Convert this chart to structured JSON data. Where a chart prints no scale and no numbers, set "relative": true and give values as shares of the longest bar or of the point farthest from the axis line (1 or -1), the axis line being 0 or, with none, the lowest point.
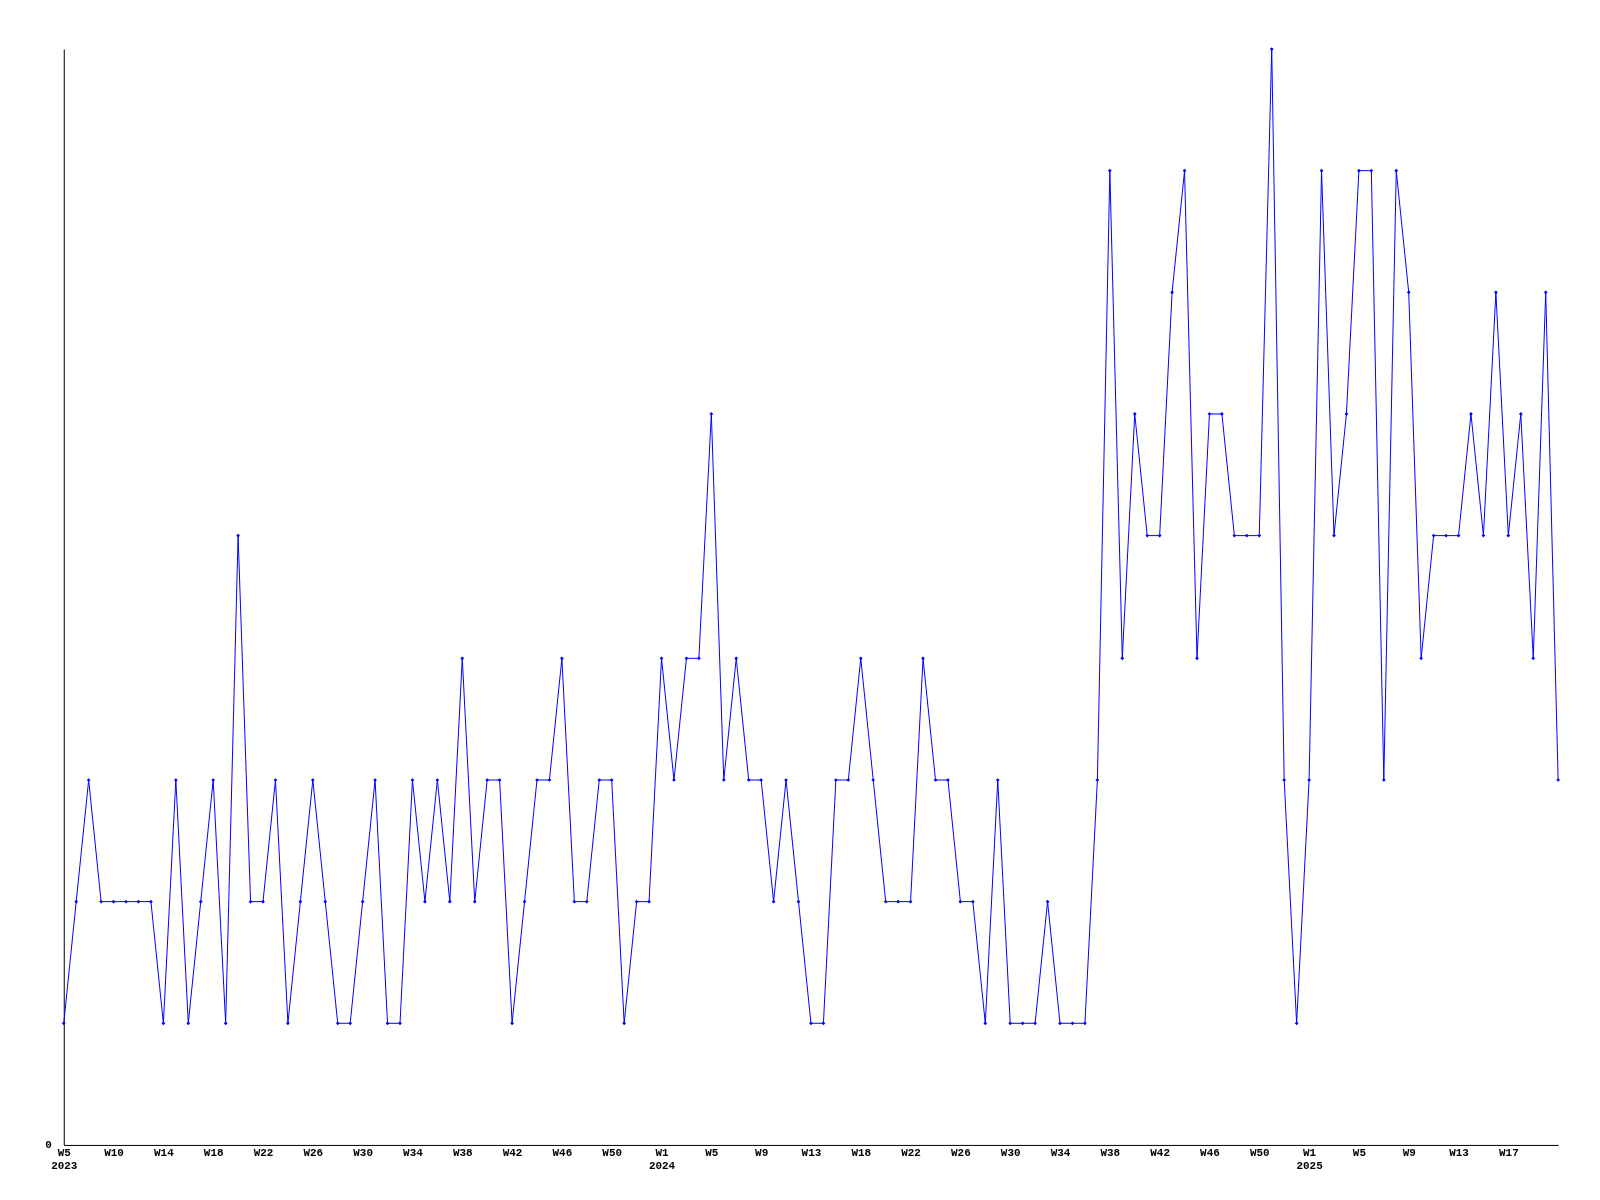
{
  "chart_data": {
    "type": "line",
    "relative": true,
    "color": "#0000ff",
    "marker": "diamond",
    "line_style": "solid",
    "grid": false,
    "annotations": [
      "0"
    ],
    "categories": [
      "W5\n2023",
      null,
      null,
      null,
      "W10",
      null,
      null,
      null,
      "W14",
      null,
      null,
      null,
      "W18",
      null,
      null,
      null,
      "W22",
      null,
      null,
      null,
      "W26",
      null,
      null,
      null,
      "W30",
      null,
      null,
      null,
      "W34",
      null,
      null,
      null,
      "W38",
      null,
      null,
      null,
      "W42",
      null,
      null,
      null,
      "W46",
      null,
      null,
      null,
      "W50",
      null,
      null,
      null,
      "W1\n2024",
      null,
      null,
      null,
      "W5",
      null,
      null,
      null,
      "W9",
      null,
      null,
      null,
      "W13",
      null,
      null,
      null,
      "W18",
      null,
      null,
      null,
      "W22",
      null,
      null,
      null,
      "W26",
      null,
      null,
      null,
      "W30",
      null,
      null,
      null,
      "W34",
      null,
      null,
      null,
      "W38",
      null,
      null,
      null,
      "W42",
      null,
      null,
      null,
      "W46",
      null,
      null,
      null,
      "W50",
      null,
      null,
      null,
      "W1\n2025",
      null,
      null,
      null,
      "W5",
      null,
      null,
      null,
      "W9",
      null,
      null,
      null,
      "W13",
      null,
      null,
      null,
      "W17",
      null,
      null,
      null,
      null
    ],
    "values": [
      0.111,
      0.222,
      0.333,
      0.222,
      0.222,
      0.222,
      0.222,
      0.222,
      0.111,
      0.333,
      0.111,
      0.222,
      0.333,
      0.111,
      0.556,
      0.222,
      0.222,
      0.333,
      0.111,
      0.222,
      0.333,
      0.222,
      0.111,
      0.111,
      0.222,
      0.333,
      0.111,
      0.111,
      0.333,
      0.222,
      0.333,
      0.222,
      0.444,
      0.222,
      0.333,
      0.333,
      0.111,
      0.222,
      0.333,
      0.333,
      0.444,
      0.222,
      0.222,
      0.333,
      0.333,
      0.111,
      0.222,
      0.222,
      0.444,
      0.333,
      0.444,
      0.444,
      0.667,
      0.333,
      0.444,
      0.333,
      0.333,
      0.222,
      0.333,
      0.222,
      0.111,
      0.111,
      0.333,
      0.333,
      0.444,
      0.333,
      0.222,
      0.222,
      0.222,
      0.444,
      0.333,
      0.333,
      0.222,
      0.222,
      0.111,
      0.333,
      0.111,
      0.111,
      0.111,
      0.222,
      0.111,
      0.111,
      0.111,
      0.333,
      0.889,
      0.444,
      0.667,
      0.556,
      0.556,
      0.778,
      0.889,
      0.444,
      0.667,
      0.667,
      0.556,
      0.556,
      0.556,
      1,
      0.333,
      0.111,
      0.333,
      0.889,
      0.556,
      0.667,
      0.889,
      0.889,
      0.333,
      0.889,
      0.778,
      0.444,
      0.556,
      0.556,
      0.556,
      0.667,
      0.556,
      0.778,
      0.556,
      0.667,
      0.444,
      0.778,
      0.333
    ]
  }
}
